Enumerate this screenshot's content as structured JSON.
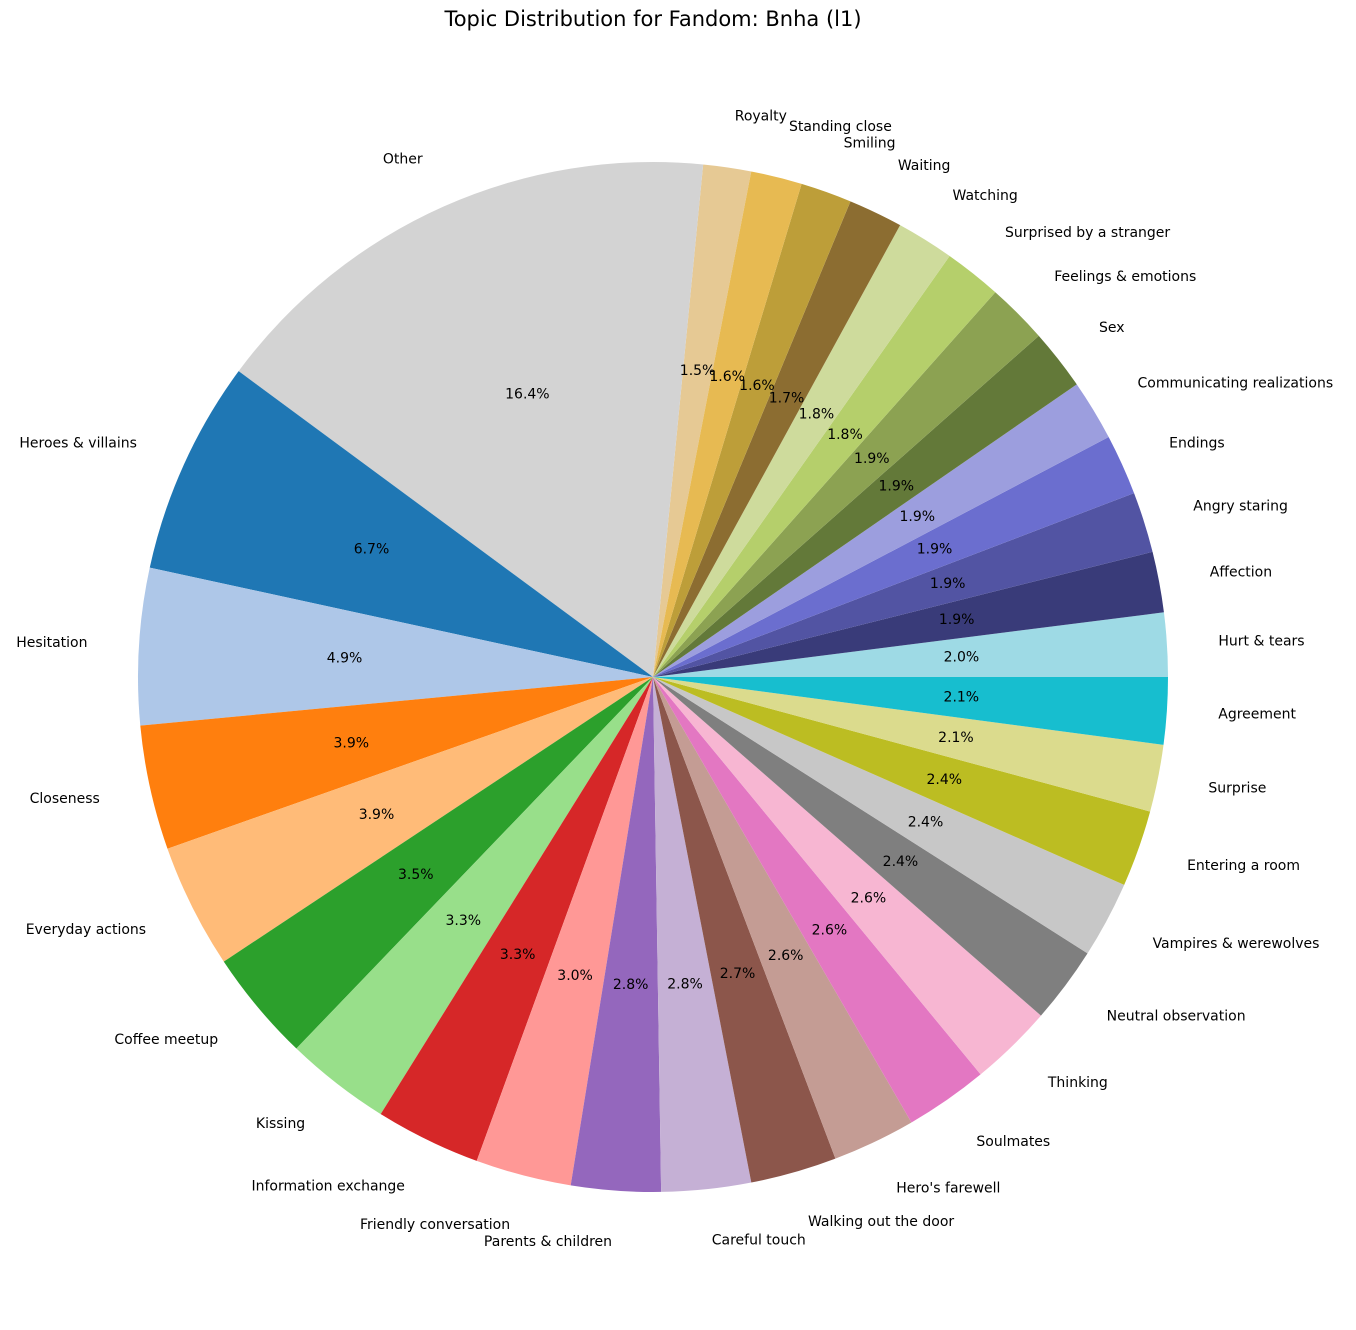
{
  "chart_data": {
    "type": "pie",
    "title": "Topic Distribution for Fandom: Bnha (l1)",
    "start_angle_deg": 79,
    "direction": "counterclockwise",
    "slices": [
      {
        "label": "Royalty",
        "value": 1.5,
        "pct_label": "1.5%",
        "color": "#e6c994"
      },
      {
        "label": "Other",
        "value": 16.4,
        "pct_label": "16.4%",
        "color": "#d3d3d3"
      },
      {
        "label": "Heroes & villains",
        "value": 6.7,
        "pct_label": "6.7%",
        "color": "#1f77b4"
      },
      {
        "label": "Hesitation",
        "value": 4.9,
        "pct_label": "4.9%",
        "color": "#aec7e8"
      },
      {
        "label": "Closeness",
        "value": 3.9,
        "pct_label": "3.9%",
        "color": "#ff7f0e"
      },
      {
        "label": "Everyday actions",
        "value": 3.9,
        "pct_label": "3.9%",
        "color": "#ffbb78"
      },
      {
        "label": "Coffee meetup",
        "value": 3.5,
        "pct_label": "3.5%",
        "color": "#2ca02c"
      },
      {
        "label": "Kissing",
        "value": 3.3,
        "pct_label": "3.3%",
        "color": "#98df8a"
      },
      {
        "label": "Information exchange",
        "value": 3.3,
        "pct_label": "3.3%",
        "color": "#d62728"
      },
      {
        "label": "Friendly conversation",
        "value": 3.0,
        "pct_label": "3.0%",
        "color": "#ff9896"
      },
      {
        "label": "Parents & children",
        "value": 2.8,
        "pct_label": "2.8%",
        "color": "#9467bd"
      },
      {
        "label": "Careful touch",
        "value": 2.8,
        "pct_label": "2.8%",
        "color": "#c5b0d5"
      },
      {
        "label": "Walking out the door",
        "value": 2.7,
        "pct_label": "2.7%",
        "color": "#8c564b"
      },
      {
        "label": "Hero's farewell",
        "value": 2.6,
        "pct_label": "2.6%",
        "color": "#c49c94"
      },
      {
        "label": "Soulmates",
        "value": 2.6,
        "pct_label": "2.6%",
        "color": "#e377c2"
      },
      {
        "label": "Thinking",
        "value": 2.6,
        "pct_label": "2.6%",
        "color": "#f7b6d2"
      },
      {
        "label": "Neutral observation",
        "value": 2.4,
        "pct_label": "2.4%",
        "color": "#7f7f7f"
      },
      {
        "label": "Vampires & werewolves",
        "value": 2.4,
        "pct_label": "2.4%",
        "color": "#c7c7c7"
      },
      {
        "label": "Entering a room",
        "value": 2.4,
        "pct_label": "2.4%",
        "color": "#bcbd22"
      },
      {
        "label": "Surprise",
        "value": 2.1,
        "pct_label": "2.1%",
        "color": "#dbdb8d"
      },
      {
        "label": "Agreement",
        "value": 2.1,
        "pct_label": "2.1%",
        "color": "#17becf"
      },
      {
        "label": "Hurt & tears",
        "value": 2.0,
        "pct_label": "2.0%",
        "color": "#9edae5"
      },
      {
        "label": "Affection",
        "value": 1.9,
        "pct_label": "1.9%",
        "color": "#393b79"
      },
      {
        "label": "Angry staring",
        "value": 1.9,
        "pct_label": "1.9%",
        "color": "#5254a3"
      },
      {
        "label": "Endings",
        "value": 1.9,
        "pct_label": "1.9%",
        "color": "#6b6ecf"
      },
      {
        "label": "Communicating realizations",
        "value": 1.9,
        "pct_label": "1.9%",
        "color": "#9c9ede"
      },
      {
        "label": "Sex",
        "value": 1.9,
        "pct_label": "1.9%",
        "color": "#637939"
      },
      {
        "label": "Feelings & emotions",
        "value": 1.9,
        "pct_label": "1.9%",
        "color": "#8ca252"
      },
      {
        "label": "Surprised by a stranger",
        "value": 1.8,
        "pct_label": "1.8%",
        "color": "#b5cf6b"
      },
      {
        "label": "Watching",
        "value": 1.8,
        "pct_label": "1.8%",
        "color": "#cedb9c"
      },
      {
        "label": "Waiting",
        "value": 1.7,
        "pct_label": "1.7%",
        "color": "#8c6d31"
      },
      {
        "label": "Smiling",
        "value": 1.6,
        "pct_label": "1.6%",
        "color": "#bd9e39"
      },
      {
        "label": "Standing close",
        "value": 1.6,
        "pct_label": "1.6%",
        "color": "#e7ba52"
      }
    ]
  }
}
